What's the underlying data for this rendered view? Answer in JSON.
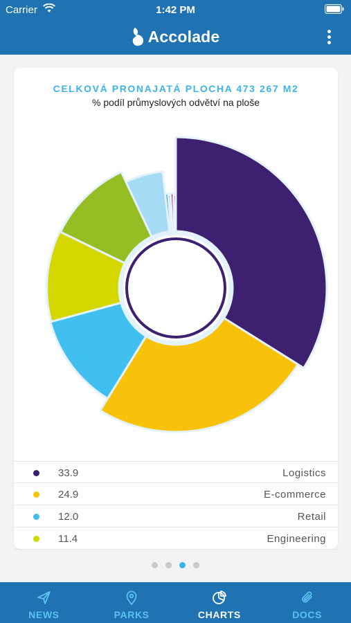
{
  "status_bar": {
    "carrier": "Carrier",
    "time": "1:42 PM"
  },
  "header": {
    "app_name": "Accolade"
  },
  "card": {
    "title": "CELKOVÁ PRONAJATÁ PLOCHA 473 267 M2",
    "subtitle": "% podíl průmyslových odvětví na ploše"
  },
  "legend": [
    {
      "value": "33.9",
      "label": "Logistics",
      "color": "#3e2070"
    },
    {
      "value": "24.9",
      "label": "E-commerce",
      "color": "#f9c20a"
    },
    {
      "value": "12.0",
      "label": "Retail",
      "color": "#41bfee"
    },
    {
      "value": "11.4",
      "label": "Engineering",
      "color": "#d5d800"
    }
  ],
  "chart_data": {
    "type": "pie",
    "variant": "polar-area",
    "series": [
      {
        "name": "Logistics",
        "value": 33.9,
        "color": "#3e2070"
      },
      {
        "name": "E-commerce",
        "value": 24.9,
        "color": "#f9c20a"
      },
      {
        "name": "Retail",
        "value": 12.0,
        "color": "#41bfee"
      },
      {
        "name": "Engineering",
        "value": 11.4,
        "color": "#d5d800"
      },
      {
        "name": "",
        "value": 10.8,
        "color": "#97bd25"
      },
      {
        "name": "",
        "value": 5.2,
        "color": "#a6dbf6"
      },
      {
        "name": "",
        "value": 0.5,
        "color": "#2c9bd0"
      },
      {
        "name": "",
        "value": 0.4,
        "color": "#1c6f9d"
      },
      {
        "name": "",
        "value": 0.5,
        "color": "#e61e6e"
      },
      {
        "name": "",
        "value": 0.4,
        "color": "#7a1f4b"
      }
    ]
  },
  "pager": {
    "count": 4,
    "active": 2
  },
  "tabs": [
    {
      "label": "NEWS",
      "icon": "paper-plane-icon",
      "active": false
    },
    {
      "label": "PARKS",
      "icon": "map-pin-icon",
      "active": false
    },
    {
      "label": "CHARTS",
      "icon": "pie-chart-icon",
      "active": true
    },
    {
      "label": "DOCS",
      "icon": "paperclip-icon",
      "active": false
    }
  ]
}
